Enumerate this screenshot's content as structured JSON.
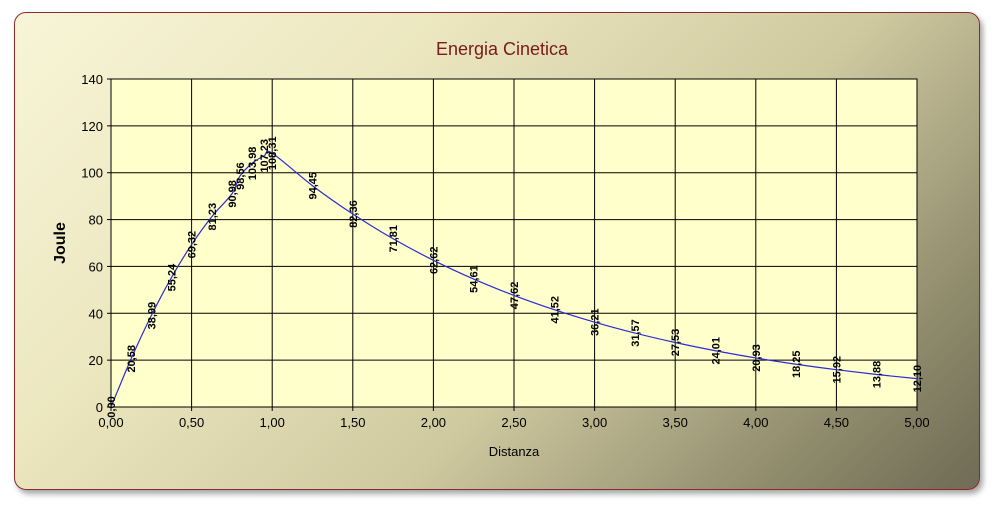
{
  "chart_data": {
    "type": "line",
    "title": "Energia Cinetica",
    "xlabel": "Distanza",
    "ylabel": "Joule",
    "xlim": [
      0,
      5
    ],
    "ylim": [
      0,
      140
    ],
    "x_ticks": [
      "0,00",
      "0,50",
      "1,00",
      "1,50",
      "2,00",
      "2,50",
      "3,00",
      "3,50",
      "4,00",
      "4,50",
      "5,00"
    ],
    "y_ticks": [
      "0",
      "20",
      "40",
      "60",
      "80",
      "100",
      "120",
      "140"
    ],
    "grid": true,
    "line_color": "#2b2bd6",
    "points": [
      {
        "x": 0.0,
        "y": 0.0,
        "label": "0,00"
      },
      {
        "x": 0.125,
        "y": 20.58,
        "label": "20,58"
      },
      {
        "x": 0.25,
        "y": 38.99,
        "label": "38,99"
      },
      {
        "x": 0.375,
        "y": 55.24,
        "label": "55,24"
      },
      {
        "x": 0.5,
        "y": 69.32,
        "label": "69,32"
      },
      {
        "x": 0.625,
        "y": 81.23,
        "label": "81,23"
      },
      {
        "x": 0.75,
        "y": 90.98,
        "label": "90,98"
      },
      {
        "x": 0.8,
        "y": 98.56,
        "label": "98,56"
      },
      {
        "x": 0.875,
        "y": 103.98,
        "label": "103,98"
      },
      {
        "x": 0.95,
        "y": 107.23,
        "label": "107,23"
      },
      {
        "x": 1.0,
        "y": 108.31,
        "label": "108,31"
      },
      {
        "x": 1.25,
        "y": 94.45,
        "label": "94,45"
      },
      {
        "x": 1.5,
        "y": 82.36,
        "label": "82,36"
      },
      {
        "x": 1.75,
        "y": 71.81,
        "label": "71,81"
      },
      {
        "x": 2.0,
        "y": 62.62,
        "label": "62,62"
      },
      {
        "x": 2.25,
        "y": 54.61,
        "label": "54,61"
      },
      {
        "x": 2.5,
        "y": 47.62,
        "label": "47,62"
      },
      {
        "x": 2.75,
        "y": 41.52,
        "label": "41,52"
      },
      {
        "x": 3.0,
        "y": 36.21,
        "label": "36,21"
      },
      {
        "x": 3.25,
        "y": 31.57,
        "label": "31,57"
      },
      {
        "x": 3.5,
        "y": 27.53,
        "label": "27,53"
      },
      {
        "x": 3.75,
        "y": 24.01,
        "label": "24,01"
      },
      {
        "x": 4.0,
        "y": 20.93,
        "label": "20,93"
      },
      {
        "x": 4.25,
        "y": 18.25,
        "label": "18,25"
      },
      {
        "x": 4.5,
        "y": 15.92,
        "label": "15,92"
      },
      {
        "x": 4.75,
        "y": 13.88,
        "label": "13,88"
      },
      {
        "x": 5.0,
        "y": 12.1,
        "label": "12,10"
      }
    ]
  }
}
